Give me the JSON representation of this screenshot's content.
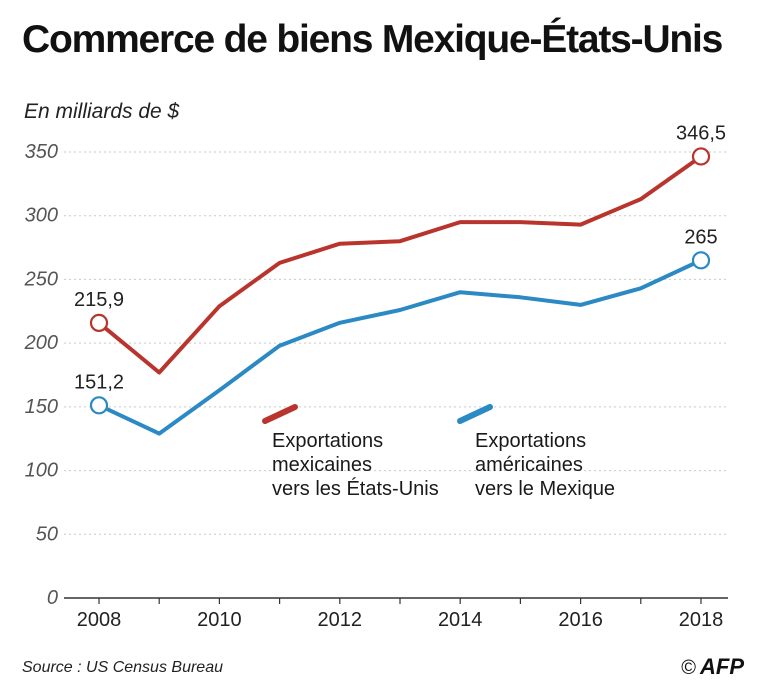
{
  "title": "Commerce de biens Mexique-États-Unis",
  "unit_label": "En milliards de $",
  "source": "Source : US Census Bureau",
  "credit": {
    "copyright": "©",
    "agency": "AFP"
  },
  "chart_data": {
    "type": "line",
    "title": "Commerce de biens Mexique-États-Unis",
    "ylabel": "En milliards de $",
    "xlabel": "",
    "x": [
      2008,
      2009,
      2010,
      2011,
      2012,
      2013,
      2014,
      2015,
      2016,
      2017,
      2018
    ],
    "x_ticks": [
      "2008",
      "2010",
      "2012",
      "2014",
      "2016",
      "2018"
    ],
    "y_ticks": [
      "0",
      "50",
      "100",
      "150",
      "200",
      "250",
      "300",
      "350"
    ],
    "ylim": [
      0,
      350
    ],
    "grid": true,
    "legend_position": "center",
    "series": [
      {
        "name": "Exportations mexicaines vers les États-Unis",
        "legend_lines": "Exportations\nmexicaines\nvers les États-Unis",
        "color": "#b8342c",
        "values": [
          215.9,
          177,
          229,
          263,
          278,
          280,
          295,
          295,
          293,
          313,
          346.5
        ],
        "labels": [
          {
            "index": 0,
            "text": "215,9"
          },
          {
            "index": 10,
            "text": "346,5"
          }
        ]
      },
      {
        "name": "Exportations américaines vers le Mexique",
        "legend_lines": "Exportations\naméricaines\nvers le Mexique",
        "color": "#2b89c4",
        "values": [
          151.2,
          129,
          163,
          198,
          216,
          226,
          240,
          236,
          230,
          243,
          265
        ],
        "labels": [
          {
            "index": 0,
            "text": "151,2"
          },
          {
            "index": 10,
            "text": "265"
          }
        ]
      }
    ]
  }
}
